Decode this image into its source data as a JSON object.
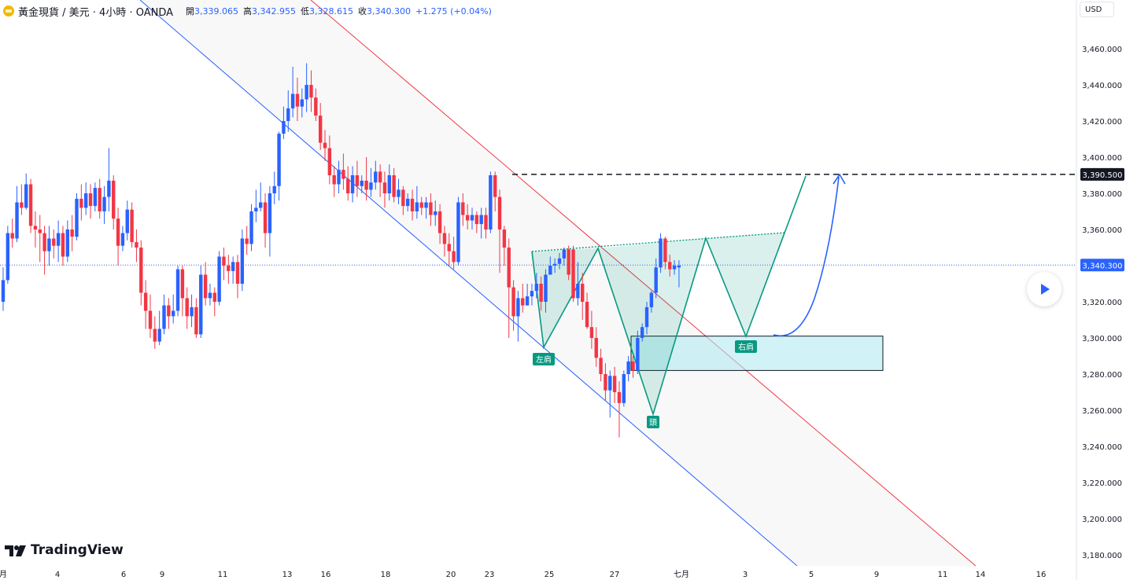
{
  "legend": {
    "symbol": "黃金現貨 / 美元 · 4小時 · OANDA",
    "open_label": "開",
    "open": "3,339.065",
    "high_label": "高",
    "high": "3,342.955",
    "low_label": "低",
    "low": "3,328.615",
    "close_label": "收",
    "close": "3,340.300",
    "change": "+1.275 (+0.04%)",
    "icon": "gold-coin-icon"
  },
  "currency": "USD",
  "watermark": "TradingView",
  "colors": {
    "up": "#2962ff",
    "down": "#f23645",
    "pattern": "#089981",
    "channel_upper": "#f23645",
    "channel_lower": "#2962ff",
    "zone": "#b2ebf2"
  },
  "chart_data": {
    "type": "candlestick",
    "title": "",
    "xlabel": "",
    "ylabel": "",
    "ylim": [
      3172,
      3480
    ],
    "y_ticks": [
      3180,
      3200,
      3220,
      3240,
      3260,
      3280,
      3300,
      3320,
      3340,
      3360,
      3380,
      3400,
      3420,
      3440,
      3460
    ],
    "y_tick_labels": [
      "3,180.000",
      "3,200.000",
      "3,220.000",
      "3,240.000",
      "3,260.000",
      "3,280.000",
      "3,300.000",
      "3,320.000",
      "3,340.000",
      "3,360.000",
      "3,380.000",
      "3,400.000",
      "3,420.000",
      "3,440.000",
      "3,460.000"
    ],
    "x_ticks": [
      {
        "label": "月",
        "x": 4
      },
      {
        "label": "4",
        "x": 73
      },
      {
        "label": "6",
        "x": 157
      },
      {
        "label": "9",
        "x": 206
      },
      {
        "label": "11",
        "x": 283
      },
      {
        "label": "13",
        "x": 365
      },
      {
        "label": "16",
        "x": 414
      },
      {
        "label": "18",
        "x": 490
      },
      {
        "label": "20",
        "x": 573
      },
      {
        "label": "23",
        "x": 622
      },
      {
        "label": "25",
        "x": 698
      },
      {
        "label": "27",
        "x": 781
      },
      {
        "label": "七月",
        "x": 866
      },
      {
        "label": "3",
        "x": 947
      },
      {
        "label": "5",
        "x": 1031
      },
      {
        "label": "9",
        "x": 1114
      },
      {
        "label": "11",
        "x": 1198
      },
      {
        "label": "14",
        "x": 1246
      },
      {
        "label": "16",
        "x": 1323
      }
    ],
    "candles": [
      [
        3320,
        3332,
        3315,
        3339
      ],
      [
        3332,
        3358,
        3330,
        3362
      ],
      [
        3358,
        3355,
        3350,
        3366
      ],
      [
        3355,
        3375,
        3353,
        3384
      ],
      [
        3375,
        3372,
        3368,
        3385
      ],
      [
        3372,
        3385,
        3371,
        3391
      ],
      [
        3385,
        3362,
        3358,
        3388
      ],
      [
        3362,
        3360,
        3350,
        3370
      ],
      [
        3360,
        3358,
        3342,
        3368
      ],
      [
        3358,
        3348,
        3335,
        3362
      ],
      [
        3348,
        3355,
        3340,
        3362
      ],
      [
        3355,
        3351,
        3344,
        3360
      ],
      [
        3351,
        3358,
        3342,
        3365
      ],
      [
        3358,
        3345,
        3340,
        3362
      ],
      [
        3345,
        3360,
        3342,
        3365
      ],
      [
        3360,
        3356,
        3348,
        3368
      ],
      [
        3356,
        3377,
        3354,
        3380
      ],
      [
        3377,
        3372,
        3365,
        3385
      ],
      [
        3372,
        3380,
        3368,
        3386
      ],
      [
        3380,
        3373,
        3366,
        3385
      ],
      [
        3373,
        3383,
        3370,
        3386
      ],
      [
        3383,
        3370,
        3366,
        3388
      ],
      [
        3370,
        3378,
        3363,
        3384
      ],
      [
        3378,
        3387,
        3370,
        3405
      ],
      [
        3387,
        3366,
        3360,
        3390
      ],
      [
        3366,
        3351,
        3340,
        3372
      ],
      [
        3351,
        3358,
        3348,
        3362
      ],
      [
        3358,
        3371,
        3354,
        3376
      ],
      [
        3371,
        3353,
        3350,
        3375
      ],
      [
        3353,
        3350,
        3342,
        3360
      ],
      [
        3350,
        3325,
        3318,
        3354
      ],
      [
        3325,
        3315,
        3305,
        3332
      ],
      [
        3315,
        3305,
        3300,
        3324
      ],
      [
        3305,
        3298,
        3294,
        3312
      ],
      [
        3298,
        3305,
        3296,
        3315
      ],
      [
        3305,
        3318,
        3302,
        3324
      ],
      [
        3318,
        3312,
        3305,
        3322
      ],
      [
        3312,
        3315,
        3308,
        3324
      ],
      [
        3315,
        3338,
        3312,
        3340
      ],
      [
        3338,
        3322,
        3312,
        3340
      ],
      [
        3322,
        3312,
        3305,
        3328
      ],
      [
        3312,
        3317,
        3306,
        3324
      ],
      [
        3317,
        3302,
        3300,
        3322
      ],
      [
        3302,
        3335,
        3300,
        3340
      ],
      [
        3335,
        3322,
        3318,
        3342
      ],
      [
        3322,
        3325,
        3318,
        3330
      ],
      [
        3325,
        3320,
        3312,
        3328
      ],
      [
        3320,
        3345,
        3318,
        3348
      ],
      [
        3345,
        3340,
        3332,
        3350
      ],
      [
        3340,
        3337,
        3330,
        3346
      ],
      [
        3337,
        3342,
        3330,
        3345
      ],
      [
        3342,
        3330,
        3322,
        3346
      ],
      [
        3330,
        3355,
        3326,
        3360
      ],
      [
        3355,
        3352,
        3346,
        3362
      ],
      [
        3352,
        3370,
        3348,
        3374
      ],
      [
        3370,
        3372,
        3364,
        3382
      ],
      [
        3372,
        3375,
        3370,
        3386
      ],
      [
        3375,
        3358,
        3350,
        3380
      ],
      [
        3358,
        3380,
        3345,
        3384
      ],
      [
        3380,
        3384,
        3374,
        3392
      ],
      [
        3384,
        3413,
        3376,
        3414
      ],
      [
        3413,
        3420,
        3410,
        3428
      ],
      [
        3420,
        3427,
        3414,
        3437
      ],
      [
        3427,
        3435,
        3422,
        3450
      ],
      [
        3435,
        3428,
        3420,
        3444
      ],
      [
        3428,
        3432,
        3422,
        3438
      ],
      [
        3432,
        3440,
        3425,
        3452
      ],
      [
        3440,
        3433,
        3425,
        3448
      ],
      [
        3433,
        3423,
        3420,
        3438
      ],
      [
        3423,
        3408,
        3404,
        3430
      ],
      [
        3408,
        3405,
        3398,
        3415
      ],
      [
        3405,
        3390,
        3385,
        3412
      ],
      [
        3390,
        3385,
        3378,
        3395
      ],
      [
        3385,
        3393,
        3380,
        3398
      ],
      [
        3393,
        3388,
        3382,
        3402
      ],
      [
        3388,
        3380,
        3376,
        3395
      ],
      [
        3380,
        3390,
        3375,
        3395
      ],
      [
        3390,
        3384,
        3378,
        3398
      ],
      [
        3384,
        3387,
        3380,
        3390
      ],
      [
        3387,
        3382,
        3376,
        3400
      ],
      [
        3382,
        3386,
        3378,
        3394
      ],
      [
        3386,
        3392,
        3382,
        3398
      ],
      [
        3392,
        3386,
        3378,
        3396
      ],
      [
        3386,
        3380,
        3372,
        3392
      ],
      [
        3380,
        3390,
        3376,
        3396
      ],
      [
        3390,
        3378,
        3375,
        3394
      ],
      [
        3378,
        3382,
        3374,
        3388
      ],
      [
        3382,
        3373,
        3368,
        3384
      ],
      [
        3373,
        3377,
        3370,
        3380
      ],
      [
        3377,
        3370,
        3365,
        3382
      ],
      [
        3370,
        3375,
        3366,
        3384
      ],
      [
        3375,
        3372,
        3368,
        3378
      ],
      [
        3372,
        3375,
        3366,
        3378
      ],
      [
        3375,
        3368,
        3362,
        3380
      ],
      [
        3368,
        3370,
        3362,
        3376
      ],
      [
        3370,
        3358,
        3352,
        3374
      ],
      [
        3358,
        3352,
        3345,
        3362
      ],
      [
        3352,
        3348,
        3340,
        3358
      ],
      [
        3348,
        3342,
        3338,
        3356
      ],
      [
        3342,
        3375,
        3340,
        3378
      ],
      [
        3375,
        3368,
        3362,
        3380
      ],
      [
        3368,
        3365,
        3360,
        3374
      ],
      [
        3365,
        3368,
        3360,
        3372
      ],
      [
        3368,
        3363,
        3358,
        3370
      ],
      [
        3363,
        3368,
        3355,
        3372
      ],
      [
        3368,
        3360,
        3355,
        3372
      ],
      [
        3360,
        3390,
        3358,
        3392
      ],
      [
        3390,
        3378,
        3370,
        3392
      ],
      [
        3378,
        3360,
        3336,
        3382
      ],
      [
        3360,
        3350,
        3340,
        3362
      ],
      [
        3350,
        3328,
        3300,
        3355
      ],
      [
        3328,
        3312,
        3304,
        3332
      ],
      [
        3312,
        3322,
        3298,
        3326
      ],
      [
        3322,
        3318,
        3314,
        3330
      ],
      [
        3318,
        3323,
        3318,
        3330
      ],
      [
        3323,
        3326,
        3318,
        3330
      ],
      [
        3326,
        3330,
        3322,
        3336
      ],
      [
        3330,
        3320,
        3315,
        3334
      ],
      [
        3320,
        3335,
        3314,
        3338
      ],
      [
        3335,
        3340,
        3335,
        3345
      ],
      [
        3340,
        3341,
        3336,
        3344
      ],
      [
        3341,
        3344,
        3338,
        3347
      ],
      [
        3344,
        3349,
        3340,
        3350
      ],
      [
        3349,
        3335,
        3332,
        3351
      ],
      [
        3349,
        3322,
        3320,
        3351
      ],
      [
        3322,
        3330,
        3318,
        3342
      ],
      [
        3330,
        3320,
        3310,
        3336
      ],
      [
        3320,
        3306,
        3305,
        3325
      ],
      [
        3306,
        3300,
        3294,
        3315
      ],
      [
        3300,
        3289,
        3284,
        3306
      ],
      [
        3289,
        3280,
        3276,
        3294
      ],
      [
        3280,
        3271,
        3265,
        3286
      ],
      [
        3271,
        3279,
        3256,
        3282
      ],
      [
        3279,
        3270,
        3264,
        3284
      ],
      [
        3270,
        3264,
        3245,
        3276
      ],
      [
        3264,
        3280,
        3262,
        3282
      ],
      [
        3280,
        3287,
        3276,
        3290
      ],
      [
        3287,
        3282,
        3278,
        3290
      ],
      [
        3282,
        3300,
        3280,
        3304
      ],
      [
        3300,
        3306,
        3298,
        3308
      ],
      [
        3306,
        3317,
        3302,
        3320
      ],
      [
        3317,
        3325,
        3314,
        3326
      ],
      [
        3325,
        3339,
        3322,
        3344
      ],
      [
        3339,
        3355,
        3336,
        3358
      ],
      [
        3355,
        3342,
        3338,
        3356
      ],
      [
        3342,
        3338,
        3334,
        3346
      ],
      [
        3338,
        3340,
        3335,
        3343
      ],
      [
        3339,
        3340,
        3328,
        3343
      ]
    ],
    "price_line": {
      "value": 3340.3,
      "label": "3,340.300"
    },
    "target_line": {
      "value": 3390.5,
      "label": "3,390.500"
    },
    "annotations": [
      {
        "label": "左肩",
        "x": 691,
        "y": 3294
      },
      {
        "label": "頭",
        "x": 830,
        "y": 3258
      },
      {
        "label": "右肩",
        "x": 948,
        "y": 3300
      }
    ]
  }
}
